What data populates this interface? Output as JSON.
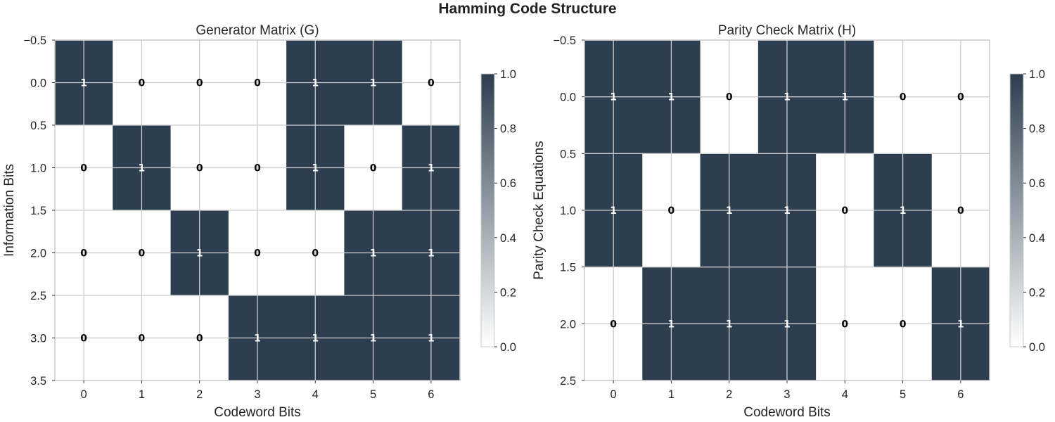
{
  "figure_title": "Hamming Code Structure",
  "colors": {
    "on": "#2c3e50",
    "off": "#ffffff",
    "grid": "#cccccc",
    "spine": "#cccccc"
  },
  "chart_data": [
    {
      "type": "heatmap",
      "title": "Generator Matrix (G)",
      "xlabel": "Codeword Bits",
      "ylabel": "Information Bits",
      "x_ticks": [
        "0",
        "1",
        "2",
        "3",
        "4",
        "5",
        "6"
      ],
      "y_ticks": [
        "−0.5",
        "0.0",
        "0.5",
        "1.0",
        "1.5",
        "2.0",
        "2.5",
        "3.0",
        "3.5"
      ],
      "colorbar_ticks": [
        "0.0",
        "0.2",
        "0.4",
        "0.6",
        "0.8",
        "1.0"
      ],
      "clim": [
        0,
        1
      ],
      "grid": true,
      "matrix": [
        [
          1,
          0,
          0,
          0,
          1,
          1,
          0
        ],
        [
          0,
          1,
          0,
          0,
          1,
          0,
          1
        ],
        [
          0,
          0,
          1,
          0,
          0,
          1,
          1
        ],
        [
          0,
          0,
          0,
          1,
          1,
          1,
          1
        ]
      ]
    },
    {
      "type": "heatmap",
      "title": "Parity Check Matrix (H)",
      "xlabel": "Codeword Bits",
      "ylabel": "Parity Check Equations",
      "x_ticks": [
        "0",
        "1",
        "2",
        "3",
        "4",
        "5",
        "6"
      ],
      "y_ticks": [
        "−0.5",
        "0.0",
        "0.5",
        "1.0",
        "1.5",
        "2.0",
        "2.5"
      ],
      "colorbar_ticks": [
        "0.0",
        "0.2",
        "0.4",
        "0.6",
        "0.8",
        "1.0"
      ],
      "clim": [
        0,
        1
      ],
      "grid": true,
      "matrix": [
        [
          1,
          1,
          0,
          1,
          1,
          0,
          0
        ],
        [
          1,
          0,
          1,
          1,
          0,
          1,
          0
        ],
        [
          0,
          1,
          1,
          1,
          0,
          0,
          1
        ]
      ]
    }
  ]
}
